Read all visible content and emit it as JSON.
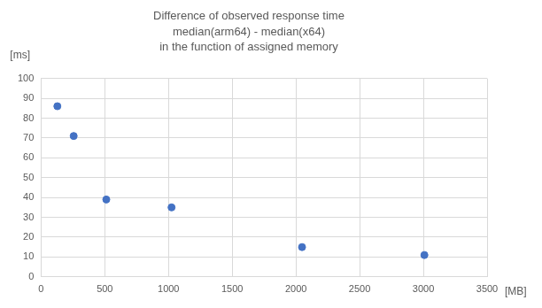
{
  "chart_data": {
    "type": "scatter",
    "title": [
      "Difference of observed response time",
      "median(arm64) - median(x64)",
      "in the function of assigned memory"
    ],
    "x_label": "[MB]",
    "y_label": "[ms]",
    "x": [
      128,
      256,
      512,
      1024,
      2048,
      3008
    ],
    "values": [
      86,
      71,
      39,
      35,
      15,
      11
    ],
    "color": "#4472c4",
    "marker": "circle",
    "xlim": [
      0,
      3500
    ],
    "xticks": [
      0,
      500,
      1000,
      1500,
      2000,
      2500,
      3000,
      3500
    ],
    "ylim": [
      0,
      100
    ],
    "yticks": [
      0,
      10,
      20,
      30,
      40,
      50,
      60,
      70,
      80,
      90,
      100
    ],
    "grid": true
  }
}
